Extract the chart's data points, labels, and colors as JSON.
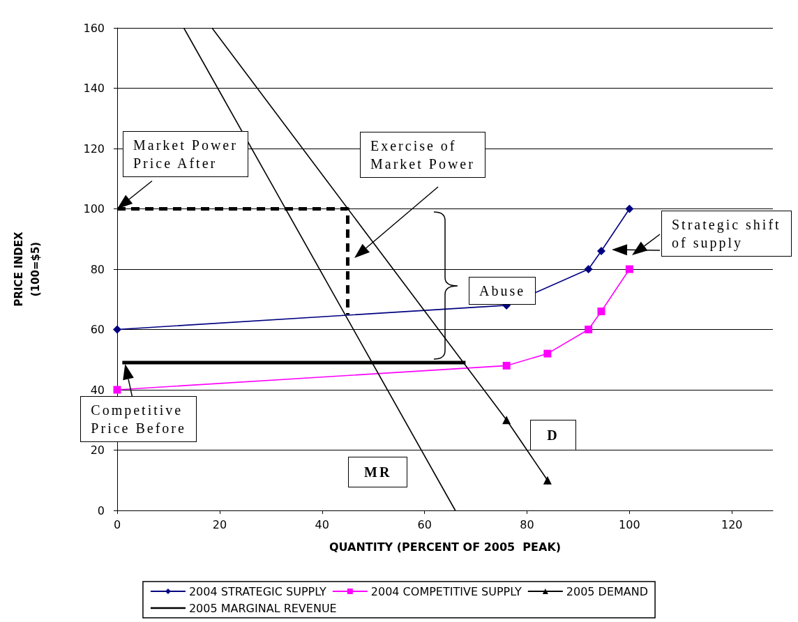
{
  "chart_data": {
    "type": "line",
    "xlabel": "QUANTITY (PERCENT OF 2005  PEAK)",
    "ylabel": "PRICE INDEX\n(100=$5)",
    "xlim": [
      0,
      128
    ],
    "xticks": [
      0,
      20,
      40,
      60,
      80,
      100,
      120
    ],
    "ylim": [
      0,
      160
    ],
    "yticks": [
      0,
      20,
      40,
      60,
      80,
      100,
      120,
      140,
      160
    ],
    "grid": "y",
    "legend": "bottom",
    "series": [
      {
        "name": "2004 STRATEGIC SUPPLY",
        "color": "#000080",
        "marker": "diamond",
        "x": [
          0,
          76,
          92,
          94.5,
          100
        ],
        "values": [
          60,
          68,
          80,
          86,
          100
        ]
      },
      {
        "name": "2004 COMPETITIVE SUPPLY",
        "color": "#ff00ff",
        "marker": "square",
        "x": [
          0,
          76,
          84,
          92,
          94.5,
          100
        ],
        "values": [
          40,
          48,
          52,
          60,
          66,
          80
        ]
      },
      {
        "name": "2005 DEMAND",
        "color": "#000000",
        "marker": "triangle",
        "x": [
          18.5,
          76,
          84
        ],
        "values": [
          160,
          30,
          10
        ]
      },
      {
        "name": "2005 MARGINAL REVENUE",
        "color": "#000000",
        "marker": "none",
        "x": [
          13,
          66
        ],
        "values": [
          160,
          0
        ]
      },
      {
        "color": "#000000",
        "marker": "none",
        "line_style": "dashed",
        "x": [
          0,
          45,
          45
        ],
        "values": [
          100,
          100,
          65
        ]
      },
      {
        "color": "#000000",
        "marker": "none",
        "line_style": "solid",
        "x": [
          1,
          68
        ],
        "values": [
          49,
          49
        ]
      }
    ],
    "annotations": [
      {
        "text": "Market Power\nPrice After",
        "x": 0,
        "y": 100
      },
      "Exercise of\nMarket Power",
      "Abuse",
      "Strategic shift\nof supply",
      {
        "text": "Competitive\nPrice Before",
        "x": 1,
        "y": 49
      },
      "D",
      "MR"
    ]
  }
}
